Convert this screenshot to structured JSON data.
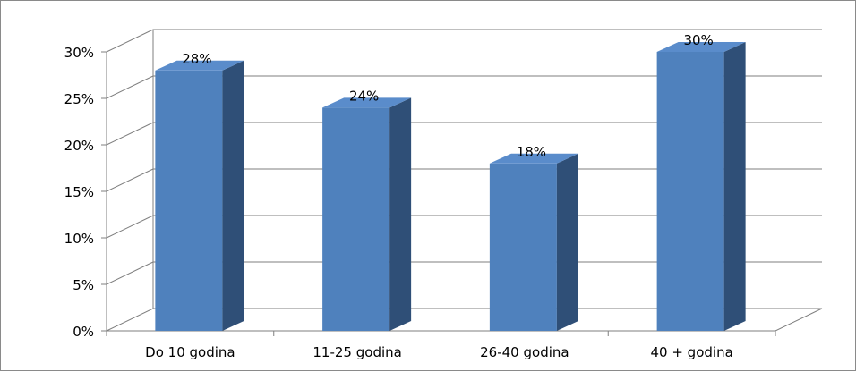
{
  "chart_data": {
    "type": "bar",
    "categories": [
      "Do 10 godina",
      "11-25 godina",
      "26-40 godina",
      "40 + godina"
    ],
    "values": [
      28,
      24,
      18,
      30
    ],
    "data_labels": [
      "28%",
      "24%",
      "18%",
      "30%"
    ],
    "ylim": [
      0,
      30
    ],
    "yticks": [
      0,
      5,
      10,
      15,
      20,
      25,
      30
    ],
    "ytick_labels": [
      "0%",
      "5%",
      "10%",
      "15%",
      "20%",
      "25%",
      "30%"
    ],
    "title": "",
    "xlabel": "",
    "ylabel": "",
    "grid": true,
    "legend": "none",
    "three_d": true,
    "colors": {
      "bar_front": "#4f81bd",
      "bar_side": "#2f4f77",
      "bar_top": "#5a8ccb",
      "grid": "#7f7f7f",
      "axis": "#7f7f7f"
    }
  }
}
